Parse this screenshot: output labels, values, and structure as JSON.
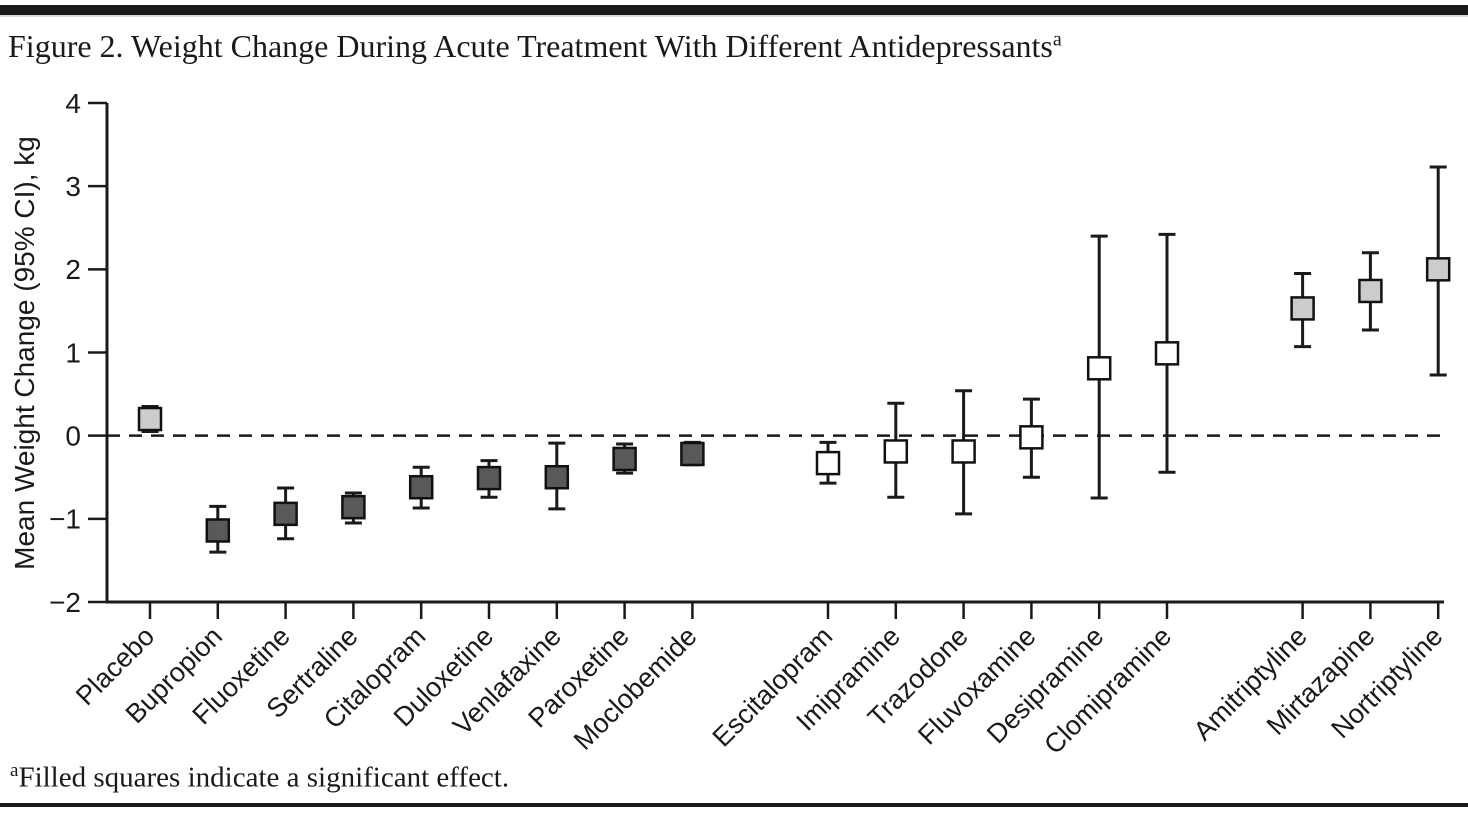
{
  "figure": {
    "title": "Figure 2. Weight Change During Acute Treatment With Different Antidepressants",
    "title_superscript": "a",
    "footnote_marker": "a",
    "footnote_text": "Filled squares indicate a significant effect."
  },
  "chart_data": {
    "type": "scatter",
    "subtype": "point-estimate-with-95ci-error-bars",
    "title": "",
    "xlabel": "",
    "ylabel": "Mean Weight Change (95% CI), kg",
    "ylim": [
      -2,
      4
    ],
    "yticks": [
      -2,
      -1,
      0,
      1,
      2,
      3,
      4
    ],
    "reference_line": {
      "y": 0,
      "style": "dashed"
    },
    "grid": false,
    "legend_position": "none",
    "fill_legend_note": "Filled squares indicate a significant effect",
    "fill_colors": {
      "dark": "#595959",
      "light": "#cccccc",
      "open": "#ffffff"
    },
    "line_color": "#1a1a1a",
    "points": [
      {
        "label": "Placebo",
        "group": 1,
        "mean": 0.2,
        "ci_low": 0.05,
        "ci_high": 0.35,
        "fill": "light",
        "significant": true
      },
      {
        "label": "Bupropion",
        "group": 1,
        "mean": -1.14,
        "ci_low": -1.4,
        "ci_high": -0.85,
        "fill": "dark",
        "significant": true
      },
      {
        "label": "Fluoxetine",
        "group": 1,
        "mean": -0.94,
        "ci_low": -1.24,
        "ci_high": -0.63,
        "fill": "dark",
        "significant": true
      },
      {
        "label": "Sertraline",
        "group": 1,
        "mean": -0.86,
        "ci_low": -1.05,
        "ci_high": -0.69,
        "fill": "dark",
        "significant": true
      },
      {
        "label": "Citalopram",
        "group": 1,
        "mean": -0.62,
        "ci_low": -0.87,
        "ci_high": -0.38,
        "fill": "dark",
        "significant": true
      },
      {
        "label": "Duloxetine",
        "group": 1,
        "mean": -0.51,
        "ci_low": -0.74,
        "ci_high": -0.3,
        "fill": "dark",
        "significant": true
      },
      {
        "label": "Venlafaxine",
        "group": 1,
        "mean": -0.5,
        "ci_low": -0.88,
        "ci_high": -0.09,
        "fill": "dark",
        "significant": true
      },
      {
        "label": "Paroxetine",
        "group": 1,
        "mean": -0.28,
        "ci_low": -0.45,
        "ci_high": -0.1,
        "fill": "dark",
        "significant": true
      },
      {
        "label": "Moclobemide",
        "group": 1,
        "mean": -0.22,
        "ci_low": -0.35,
        "ci_high": -0.08,
        "fill": "dark",
        "significant": true
      },
      {
        "label": "Escitalopram",
        "group": 2,
        "mean": -0.33,
        "ci_low": -0.57,
        "ci_high": -0.08,
        "fill": "open",
        "significant": false
      },
      {
        "label": "Imipramine",
        "group": 2,
        "mean": -0.19,
        "ci_low": -0.74,
        "ci_high": 0.39,
        "fill": "open",
        "significant": false
      },
      {
        "label": "Trazodone",
        "group": 2,
        "mean": -0.19,
        "ci_low": -0.94,
        "ci_high": 0.54,
        "fill": "open",
        "significant": false
      },
      {
        "label": "Fluvoxamine",
        "group": 2,
        "mean": -0.02,
        "ci_low": -0.5,
        "ci_high": 0.44,
        "fill": "open",
        "significant": false
      },
      {
        "label": "Desipramine",
        "group": 2,
        "mean": 0.81,
        "ci_low": -0.75,
        "ci_high": 2.4,
        "fill": "open",
        "significant": false
      },
      {
        "label": "Clomipramine",
        "group": 2,
        "mean": 0.99,
        "ci_low": -0.44,
        "ci_high": 2.42,
        "fill": "open",
        "significant": false
      },
      {
        "label": "Amitriptyline",
        "group": 3,
        "mean": 1.53,
        "ci_low": 1.07,
        "ci_high": 1.95,
        "fill": "light",
        "significant": true
      },
      {
        "label": "Mirtazapine",
        "group": 3,
        "mean": 1.74,
        "ci_low": 1.27,
        "ci_high": 2.2,
        "fill": "light",
        "significant": true
      },
      {
        "label": "Nortriptyline",
        "group": 3,
        "mean": 2.0,
        "ci_low": 0.73,
        "ci_high": 3.23,
        "fill": "light",
        "significant": true
      }
    ]
  }
}
